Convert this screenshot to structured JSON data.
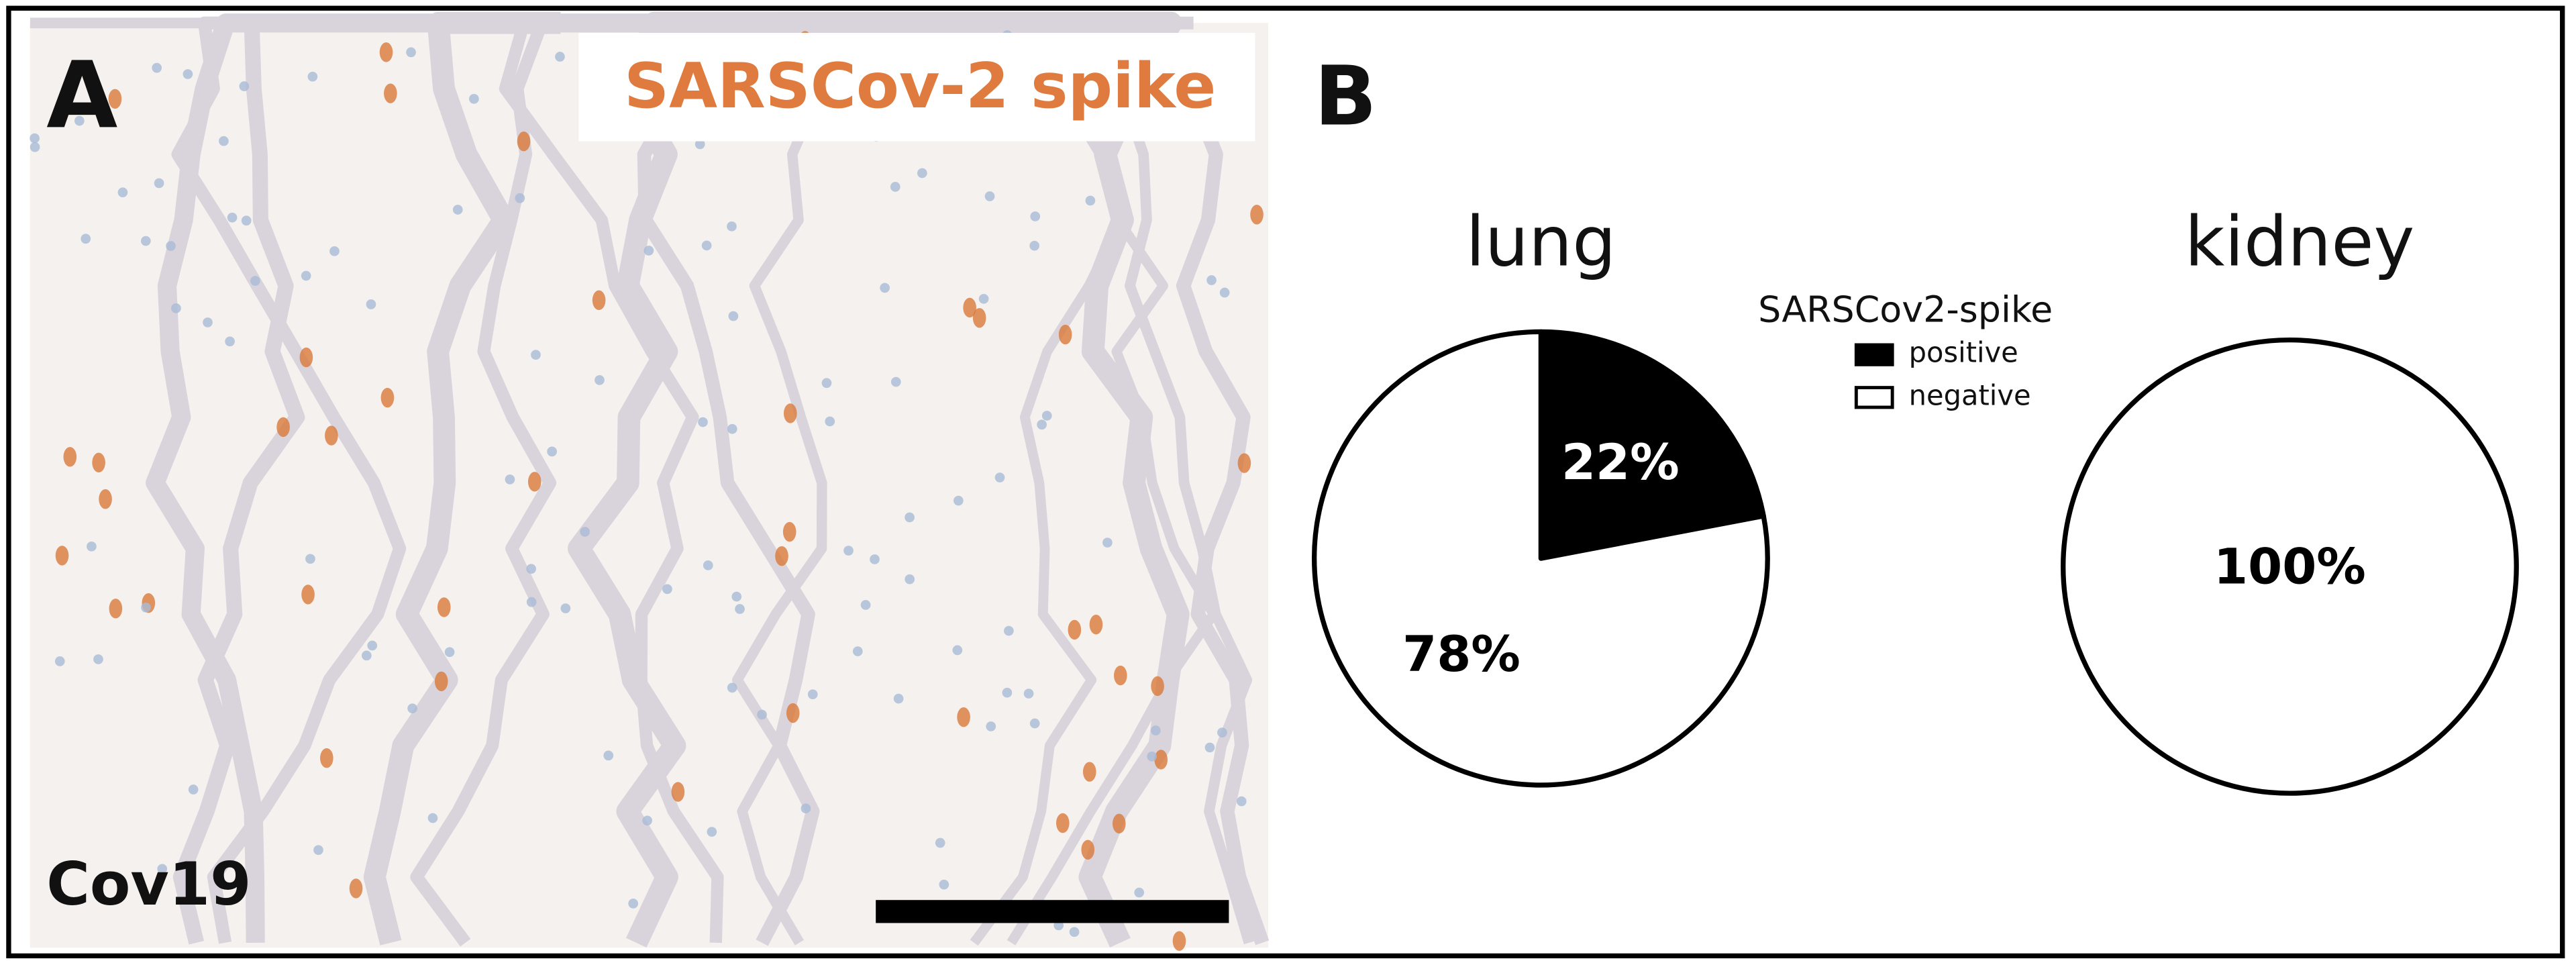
{
  "panel_a": {
    "label": "A",
    "stain": "SARSCov-2 spike",
    "sample": "Cov19"
  },
  "panel_b": {
    "label": "B"
  },
  "chart_data": [
    {
      "type": "pie",
      "title": "lung",
      "legend_title": "SARSCov2-spike",
      "categories": [
        "positive",
        "negative"
      ],
      "values": [
        22,
        78
      ],
      "value_labels": [
        "22%",
        "78%"
      ],
      "colors": [
        "#000000",
        "#ffffff"
      ]
    },
    {
      "type": "pie",
      "title": "kidney",
      "values": [
        100
      ],
      "value_labels": [
        "100%"
      ],
      "colors": [
        "#ffffff"
      ]
    }
  ]
}
